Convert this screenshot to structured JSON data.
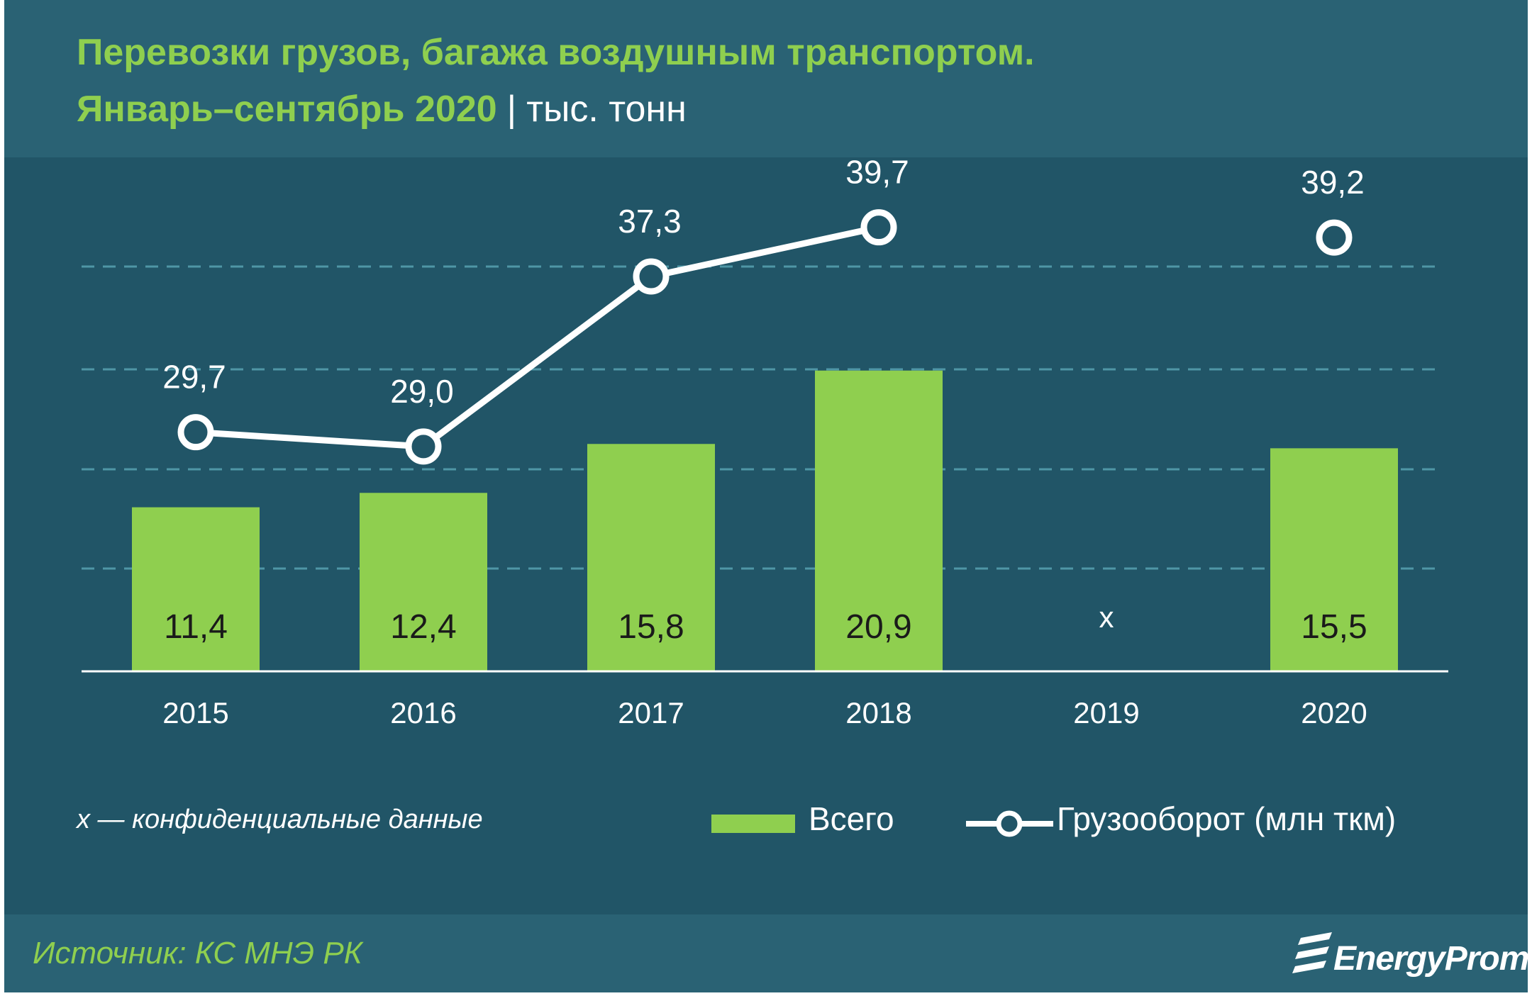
{
  "header": {
    "title_line1": "Перевозки грузов, багажа воздушным транспортом.",
    "title_line2": "Январь–сентябрь 2020",
    "separator": "|",
    "unit": "тыс. тонн"
  },
  "chart_data": {
    "type": "bar",
    "categories": [
      "2015",
      "2016",
      "2017",
      "2018",
      "2019",
      "2020"
    ],
    "series": [
      {
        "name": "Всего",
        "type": "bar",
        "values": [
          11.4,
          12.4,
          15.8,
          20.9,
          null,
          15.5
        ],
        "labels": [
          "11,4",
          "12,4",
          "15,8",
          "20,9",
          "x",
          "15,5"
        ]
      },
      {
        "name": "Грузооборот (млн ткм)",
        "type": "line",
        "values": [
          29.7,
          29.0,
          37.3,
          39.7,
          null,
          39.2
        ],
        "labels": [
          "29,7",
          "29,0",
          "37,3",
          "39,7",
          "",
          "39,2"
        ]
      }
    ],
    "grid": true,
    "legend": "bottom-right",
    "colors": {
      "bar": "#8fcf4f",
      "line": "#ffffff",
      "grid": "#4f96a6",
      "axis": "#ffffff"
    }
  },
  "footnote": "х — конфиденциальные данные",
  "source": "Источник: КС МНЭ РК",
  "logo_text": "EnergyProm"
}
